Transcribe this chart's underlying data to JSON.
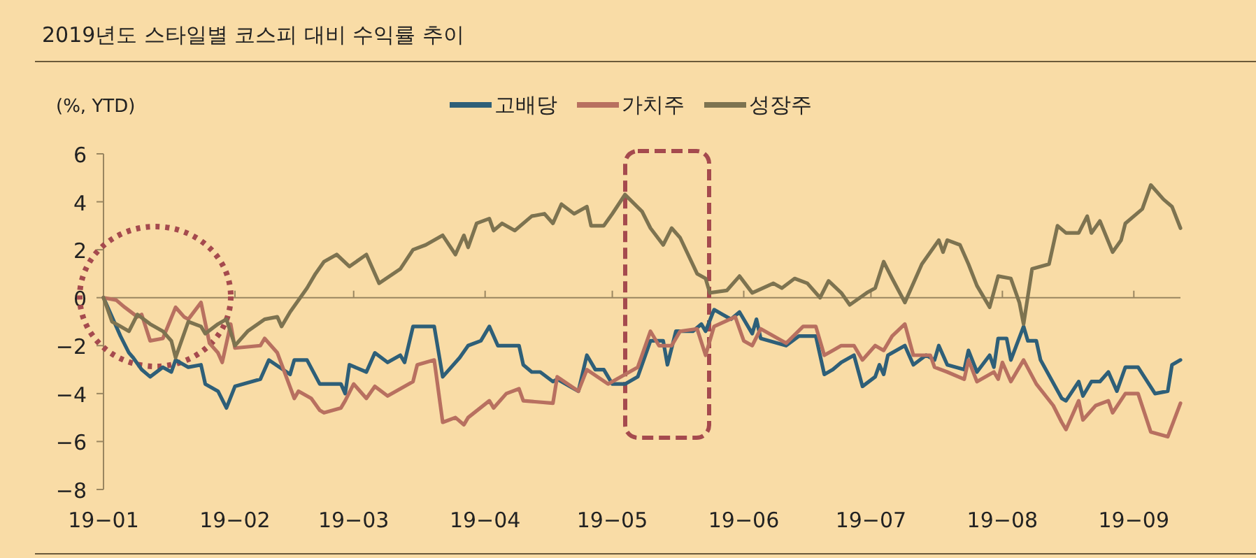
{
  "chart_data": {
    "type": "line",
    "title": "2019년도 스타일별 코스피 대비 수익률 추이",
    "ylabel": "(%, YTD)",
    "xlim": [
      "2019-01-01",
      "2019-09-12"
    ],
    "ylim": [
      -8,
      6
    ],
    "yticks": [
      {
        "value": -8,
        "label": "−8"
      },
      {
        "value": -6,
        "label": "−6"
      },
      {
        "value": -4,
        "label": "−4"
      },
      {
        "value": -2,
        "label": "−2"
      },
      {
        "value": 0,
        "label": "0"
      },
      {
        "value": 2,
        "label": "2"
      },
      {
        "value": 4,
        "label": "4"
      },
      {
        "value": 6,
        "label": "6"
      }
    ],
    "xticks": [
      {
        "value": "2019-01-01",
        "label": "19−01"
      },
      {
        "value": "2019-02-01",
        "label": "19−02"
      },
      {
        "value": "2019-03-01",
        "label": "19−03"
      },
      {
        "value": "2019-04-01",
        "label": "19−04"
      },
      {
        "value": "2019-05-01",
        "label": "19−05"
      },
      {
        "value": "2019-06-01",
        "label": "19−06"
      },
      {
        "value": "2019-07-01",
        "label": "19−07"
      },
      {
        "value": "2019-08-01",
        "label": "19−08"
      },
      {
        "value": "2019-09-01",
        "label": "19−09"
      }
    ],
    "legend": "top",
    "ref_lines": [
      {
        "axis": "y",
        "value": 0,
        "color": "#9a8660"
      }
    ],
    "series": [
      {
        "name": "고배당",
        "color": "#2e5f78",
        "x": [
          "2019-01-01",
          "2019-01-03",
          "2019-01-05",
          "2019-01-07",
          "2019-01-08",
          "2019-01-10",
          "2019-01-12",
          "2019-01-15",
          "2019-01-17",
          "2019-01-18",
          "2019-01-21",
          "2019-01-24",
          "2019-01-25",
          "2019-01-28",
          "2019-01-30",
          "2019-02-01",
          "2019-02-07",
          "2019-02-09",
          "2019-02-14",
          "2019-02-15",
          "2019-02-18",
          "2019-02-21",
          "2019-02-26",
          "2019-02-27",
          "2019-02-28",
          "2019-03-04",
          "2019-03-06",
          "2019-03-09",
          "2019-03-12",
          "2019-03-13",
          "2019-03-15",
          "2019-03-20",
          "2019-03-22",
          "2019-03-26",
          "2019-03-28",
          "2019-03-31",
          "2019-04-02",
          "2019-04-04",
          "2019-04-09",
          "2019-04-10",
          "2019-04-12",
          "2019-04-14",
          "2019-04-17",
          "2019-04-18",
          "2019-04-23",
          "2019-04-25",
          "2019-04-27",
          "2019-04-29",
          "2019-05-01",
          "2019-05-04",
          "2019-05-07",
          "2019-05-10",
          "2019-05-13",
          "2019-05-14",
          "2019-05-16",
          "2019-05-20",
          "2019-05-22",
          "2019-05-23",
          "2019-05-25",
          "2019-05-27",
          "2019-05-29",
          "2019-05-31",
          "2019-06-03",
          "2019-06-04",
          "2019-06-05",
          "2019-06-11",
          "2019-06-14",
          "2019-06-18",
          "2019-06-20",
          "2019-06-22",
          "2019-06-24",
          "2019-06-27",
          "2019-06-29",
          "2019-07-02",
          "2019-07-03",
          "2019-07-04",
          "2019-07-05",
          "2019-07-09",
          "2019-07-11",
          "2019-07-14",
          "2019-07-16",
          "2019-07-17",
          "2019-07-19",
          "2019-07-23",
          "2019-07-24",
          "2019-07-26",
          "2019-07-29",
          "2019-07-30",
          "2019-07-31",
          "2019-08-02",
          "2019-08-03",
          "2019-08-06",
          "2019-08-07",
          "2019-08-09",
          "2019-08-10",
          "2019-08-15",
          "2019-08-16",
          "2019-08-19",
          "2019-08-20",
          "2019-08-22",
          "2019-08-24",
          "2019-08-26",
          "2019-08-28",
          "2019-08-30",
          "2019-09-02",
          "2019-09-06",
          "2019-09-09",
          "2019-09-10",
          "2019-09-12"
        ],
        "values": [
          0,
          -0.8,
          -1.6,
          -2.3,
          -2.5,
          -3.0,
          -3.3,
          -2.9,
          -3.1,
          -2.6,
          -2.9,
          -2.8,
          -3.6,
          -3.9,
          -4.6,
          -3.7,
          -3.4,
          -2.6,
          -3.2,
          -2.6,
          -2.6,
          -3.6,
          -3.6,
          -4.0,
          -2.8,
          -3.1,
          -2.3,
          -2.7,
          -2.4,
          -2.7,
          -1.2,
          -1.2,
          -3.3,
          -2.5,
          -2.0,
          -1.8,
          -1.2,
          -2.0,
          -2.0,
          -2.8,
          -3.1,
          -3.1,
          -3.5,
          -3.4,
          -3.9,
          -2.4,
          -3.0,
          -3.0,
          -3.6,
          -3.6,
          -3.3,
          -1.8,
          -1.8,
          -2.8,
          -1.4,
          -1.4,
          -1.1,
          -1.4,
          -0.5,
          -0.7,
          -0.9,
          -0.6,
          -1.5,
          -0.9,
          -1.7,
          -2.0,
          -1.6,
          -1.6,
          -3.2,
          -3.0,
          -2.7,
          -2.4,
          -3.7,
          -3.3,
          -2.8,
          -3.2,
          -2.4,
          -2.0,
          -2.8,
          -2.4,
          -2.6,
          -2.0,
          -2.8,
          -3.0,
          -2.2,
          -3.1,
          -2.4,
          -2.9,
          -1.7,
          -1.7,
          -2.6,
          -1.2,
          -1.8,
          -1.8,
          -2.6,
          -4.2,
          -4.3,
          -3.5,
          -4.1,
          -3.5,
          -3.5,
          -3.1,
          -3.9,
          -2.9,
          -2.9,
          -4.0,
          -3.9,
          -2.8,
          -2.6
        ]
      },
      {
        "name": "가치주",
        "color": "#b87060",
        "x": [
          "2019-01-01",
          "2019-01-04",
          "2019-01-06",
          "2019-01-09",
          "2019-01-10",
          "2019-01-12",
          "2019-01-15",
          "2019-01-18",
          "2019-01-20",
          "2019-01-21",
          "2019-01-24",
          "2019-01-26",
          "2019-01-28",
          "2019-01-29",
          "2019-01-31",
          "2019-02-01",
          "2019-02-07",
          "2019-02-08",
          "2019-02-11",
          "2019-02-15",
          "2019-02-16",
          "2019-02-19",
          "2019-02-21",
          "2019-02-22",
          "2019-02-26",
          "2019-02-27",
          "2019-03-01",
          "2019-03-04",
          "2019-03-06",
          "2019-03-09",
          "2019-03-12",
          "2019-03-15",
          "2019-03-16",
          "2019-03-20",
          "2019-03-22",
          "2019-03-25",
          "2019-03-27",
          "2019-03-28",
          "2019-04-02",
          "2019-04-03",
          "2019-04-06",
          "2019-04-09",
          "2019-04-10",
          "2019-04-17",
          "2019-04-18",
          "2019-04-23",
          "2019-04-25",
          "2019-04-30",
          "2019-05-04",
          "2019-05-07",
          "2019-05-10",
          "2019-05-12",
          "2019-05-15",
          "2019-05-17",
          "2019-05-21",
          "2019-05-23",
          "2019-05-25",
          "2019-05-30",
          "2019-06-01",
          "2019-06-03",
          "2019-06-05",
          "2019-06-11",
          "2019-06-15",
          "2019-06-18",
          "2019-06-20",
          "2019-06-22",
          "2019-06-24",
          "2019-06-27",
          "2019-06-29",
          "2019-07-02",
          "2019-07-04",
          "2019-07-06",
          "2019-07-09",
          "2019-07-11",
          "2019-07-15",
          "2019-07-16",
          "2019-07-19",
          "2019-07-23",
          "2019-07-24",
          "2019-07-26",
          "2019-07-30",
          "2019-07-31",
          "2019-08-01",
          "2019-08-03",
          "2019-08-06",
          "2019-08-09",
          "2019-08-13",
          "2019-08-15",
          "2019-08-16",
          "2019-08-19",
          "2019-08-20",
          "2019-08-23",
          "2019-08-26",
          "2019-08-27",
          "2019-08-30",
          "2019-09-02",
          "2019-09-05",
          "2019-09-09",
          "2019-09-12"
        ],
        "values": [
          0,
          -0.1,
          -0.4,
          -0.8,
          -0.7,
          -1.8,
          -1.7,
          -0.4,
          -0.8,
          -0.9,
          -0.2,
          -1.9,
          -2.3,
          -2.7,
          -1.1,
          -2.1,
          -2.0,
          -1.7,
          -2.3,
          -4.2,
          -3.9,
          -4.2,
          -4.7,
          -4.8,
          -4.6,
          -4.3,
          -3.6,
          -4.2,
          -3.7,
          -4.1,
          -3.8,
          -3.5,
          -2.8,
          -2.6,
          -5.2,
          -5.0,
          -5.3,
          -5.0,
          -4.3,
          -4.6,
          -4.0,
          -3.8,
          -4.3,
          -4.4,
          -3.3,
          -3.9,
          -3.0,
          -3.6,
          -3.2,
          -2.9,
          -1.4,
          -2.0,
          -2.0,
          -1.4,
          -1.3,
          -2.4,
          -1.2,
          -0.8,
          -1.8,
          -2.0,
          -1.3,
          -1.9,
          -1.2,
          -1.2,
          -2.4,
          -2.2,
          -2.0,
          -2.0,
          -2.6,
          -2.0,
          -2.2,
          -1.6,
          -1.1,
          -2.4,
          -2.4,
          -2.9,
          -3.1,
          -3.4,
          -2.6,
          -3.5,
          -3.1,
          -3.4,
          -2.7,
          -3.5,
          -2.6,
          -3.6,
          -4.5,
          -5.2,
          -5.5,
          -4.3,
          -5.1,
          -4.5,
          -4.3,
          -4.8,
          -4.0,
          -4.0,
          -5.6,
          -5.8,
          -4.4
        ]
      },
      {
        "name": "성장주",
        "color": "#7d7350",
        "x": [
          "2019-01-01",
          "2019-01-03",
          "2019-01-05",
          "2019-01-07",
          "2019-01-09",
          "2019-01-12",
          "2019-01-15",
          "2019-01-17",
          "2019-01-18",
          "2019-01-21",
          "2019-01-24",
          "2019-01-25",
          "2019-01-28",
          "2019-01-30",
          "2019-02-01",
          "2019-02-04",
          "2019-02-08",
          "2019-02-11",
          "2019-02-12",
          "2019-02-14",
          "2019-02-18",
          "2019-02-20",
          "2019-02-22",
          "2019-02-25",
          "2019-02-28",
          "2019-03-04",
          "2019-03-07",
          "2019-03-12",
          "2019-03-15",
          "2019-03-18",
          "2019-03-22",
          "2019-03-25",
          "2019-03-27",
          "2019-03-28",
          "2019-03-30",
          "2019-04-02",
          "2019-04-03",
          "2019-04-05",
          "2019-04-08",
          "2019-04-12",
          "2019-04-15",
          "2019-04-17",
          "2019-04-19",
          "2019-04-22",
          "2019-04-25",
          "2019-04-26",
          "2019-04-29",
          "2019-05-01",
          "2019-05-04",
          "2019-05-08",
          "2019-05-10",
          "2019-05-13",
          "2019-05-15",
          "2019-05-17",
          "2019-05-21",
          "2019-05-23",
          "2019-05-24",
          "2019-05-28",
          "2019-05-31",
          "2019-06-03",
          "2019-06-08",
          "2019-06-10",
          "2019-06-13",
          "2019-06-16",
          "2019-06-19",
          "2019-06-21",
          "2019-06-24",
          "2019-06-26",
          "2019-06-30",
          "2019-07-02",
          "2019-07-04",
          "2019-07-06",
          "2019-07-09",
          "2019-07-13",
          "2019-07-17",
          "2019-07-18",
          "2019-07-19",
          "2019-07-22",
          "2019-07-24",
          "2019-07-26",
          "2019-07-29",
          "2019-07-31",
          "2019-08-03",
          "2019-08-05",
          "2019-08-06",
          "2019-08-08",
          "2019-08-12",
          "2019-08-14",
          "2019-08-16",
          "2019-08-19",
          "2019-08-21",
          "2019-08-22",
          "2019-08-24",
          "2019-08-27",
          "2019-08-29",
          "2019-08-30",
          "2019-09-03",
          "2019-09-05",
          "2019-09-08",
          "2019-09-10",
          "2019-09-12"
        ],
        "values": [
          0,
          -1.0,
          -1.2,
          -1.4,
          -0.7,
          -1.1,
          -1.4,
          -1.8,
          -2.5,
          -1.0,
          -1.2,
          -1.5,
          -1.1,
          -0.9,
          -2.0,
          -1.4,
          -0.9,
          -0.8,
          -1.2,
          -0.6,
          0.4,
          1.0,
          1.5,
          1.8,
          1.3,
          1.8,
          0.6,
          1.2,
          2.0,
          2.2,
          2.6,
          1.8,
          2.6,
          2.1,
          3.1,
          3.3,
          2.8,
          3.1,
          2.8,
          3.4,
          3.5,
          3.1,
          3.9,
          3.5,
          3.8,
          3.0,
          3.0,
          3.5,
          4.3,
          3.6,
          2.9,
          2.2,
          2.9,
          2.5,
          1.0,
          0.8,
          0.2,
          0.3,
          0.9,
          0.2,
          0.6,
          0.4,
          0.8,
          0.6,
          0.0,
          0.7,
          0.2,
          -0.3,
          0.2,
          0.4,
          1.5,
          0.8,
          -0.2,
          1.4,
          2.4,
          1.9,
          2.4,
          2.2,
          1.4,
          0.5,
          -0.4,
          0.9,
          0.8,
          -0.2,
          -1.1,
          1.2,
          1.4,
          3.0,
          2.7,
          2.7,
          3.4,
          2.7,
          3.2,
          1.9,
          2.4,
          3.1,
          3.7,
          4.7,
          4.1,
          3.8,
          2.9
        ]
      }
    ]
  }
}
